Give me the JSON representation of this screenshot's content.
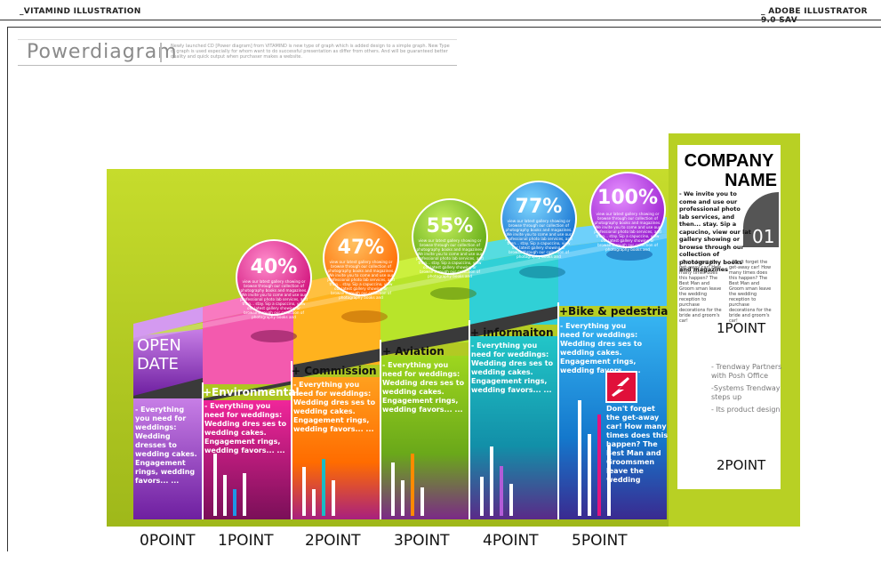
{
  "header": {
    "left": "_VITAMIND ILLUSTRATION",
    "right": "_ ADOBE ILLUSTRATOR 9.0 SAV"
  },
  "title": {
    "text": "Powerdiagram",
    "description": "Newly launched CD [Power diagram] from VITAMIND is new type of graph which is added design to a simple graph. New Type of graph is used especially for whom want to do successful presentation as differ from others. And will be guaranteed better quality and quick output when purchaser makes a website."
  },
  "open_date": [
    "OPEN",
    "DATE"
  ],
  "columns": [
    {
      "title": "",
      "body": "- Everything you need for weddings: Wedding dresses to wedding cakes. Engagement rings, wedding favors... ..."
    },
    {
      "title": "+Environmental",
      "body": "- Everything you need for weddings: Wedding dres ses to wedding cakes. Engagement rings, wedding favors... ..."
    },
    {
      "title": "+ Commission",
      "body": "- Everything you need for weddings: Wedding dres ses to wedding cakes. Engagement rings, wedding favors... ..."
    },
    {
      "title": "+ Aviation",
      "body": "- Everything you need for weddings: Wedding dres ses to wedding cakes. Engagement rings, wedding favors... ..."
    },
    {
      "title": "+ informaiton",
      "body": "- Everything you need for weddings: Wedding dres ses to wedding cakes. Engagement rings, wedding favors... ..."
    },
    {
      "title": "+Bike & pedestrian",
      "body": "- Everything you need for weddings: Wedding dres ses to wedding cakes. Engagement rings, wedding favors... ..."
    }
  ],
  "bubbles": [
    {
      "value": "40%",
      "text": "view our latest gallery showing or browse through our collection of photography books and magazines. We invite you to come and use our professional photo lab services, and then... stay. Sip a capuccino, view our latest gallery showing or browse through our collection of photography books and"
    },
    {
      "value": "47%",
      "text": "view our latest gallery showing or browse through our collection of photography books and magazines. We invite you to come and use our professional photo lab services, and then... stay. Sip a capuccino, view our latest gallery showing or browse through our collection of photography books and"
    },
    {
      "value": "55%",
      "text": "view our latest gallery showing or browse through our collection of photography books and magazines. We invite you to come and use our professional photo lab services, and then... stay. Sip a capuccino, view our latest gallery showing or browse through our collection of photography books and"
    },
    {
      "value": "77%",
      "text": "view our latest gallery showing or browse through our collection of photography books and magazines. We invite you to come and use our professional photo lab services, and then... stay. Sip a capuccino, view our latest gallery showing or browse through our collection of photography books and"
    },
    {
      "value": "100%",
      "text": "view our latest gallery showing or browse through our collection of photography books and magazines. We invite you to come and use our professional photo lab services, and then... stay. Sip a capuccino, view our latest gallery showing or browse through our collection of photography books and"
    }
  ],
  "note": "Don't forget the get-away car! How many times does this happen? The Best Man and Groomsmen leave the wedding",
  "points": [
    "0POINT",
    "1POINT",
    "2POINT",
    "3POINT",
    "4POINT",
    "5POINT"
  ],
  "company": {
    "name_line1": "COMPANY",
    "name_line2": "NAME",
    "number": "01",
    "desc": "- We invite you to come and use our professional photo lab services, and then... stay. Sip a capucino, view our lat gallery showing or browse through our collection of photography books and magazines",
    "small_left": "- Don't forget the get-away car! How many times does this happen? The Best Man and Groom sman leave the wedding reception to purchase decorations for the bride and groom's car!",
    "small_right": "- Don't forget the get-away car! How many times does this happen? The Best Man and Groom sman leave the wedding reception to purchase decorations for the bride and groom's car!",
    "point_top": "1POINT",
    "point_bottom": "2POINT",
    "list": [
      "- Trendway Partners with Posh Office",
      "-Systems Trendway steps up",
      "- Its product design"
    ]
  },
  "colors": {
    "lime": "#b8d024",
    "purple": "#b25cd8",
    "magenta": "#e2147e",
    "orange": "#ff8a00",
    "green": "#8cc21e",
    "teal": "#19bcc4",
    "blue": "#1e96e6",
    "pink_bar": "#f25aa6"
  },
  "bars": [
    [
      70,
      46,
      30,
      48
    ],
    [
      55,
      30,
      64,
      40
    ],
    [
      60,
      40,
      70,
      32
    ],
    [
      44,
      78,
      56,
      36
    ],
    [
      130,
      92,
      114,
      80
    ]
  ]
}
